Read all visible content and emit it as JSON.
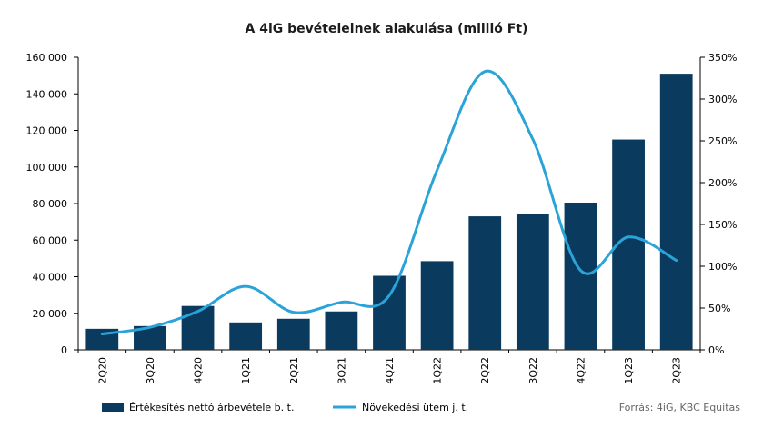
{
  "chart_data": {
    "type": "bar",
    "title": "A 4iG bevételeinek alakulása (millió Ft)",
    "categories": [
      "2Q20",
      "3Q20",
      "4Q20",
      "1Q21",
      "2Q21",
      "3Q21",
      "4Q21",
      "1Q22",
      "2Q22",
      "3Q22",
      "4Q22",
      "1Q23",
      "2Q23"
    ],
    "series": [
      {
        "name": "Értékesítés nettó árbevétele b. t.",
        "type": "bar",
        "axis": "left",
        "color": "#0a3a5e",
        "values": [
          11500,
          13000,
          24000,
          15000,
          17000,
          21000,
          40500,
          48500,
          73000,
          74500,
          80500,
          115000,
          151000
        ]
      },
      {
        "name": "Növekedési ütem j. t.",
        "type": "line",
        "axis": "right",
        "color": "#2aa3d8",
        "values": [
          19,
          27,
          46,
          76,
          45,
          57,
          65,
          215,
          333,
          252,
          95,
          135,
          107
        ]
      }
    ],
    "left_axis": {
      "ylim": [
        0,
        160000
      ],
      "ticks": [
        "0",
        "20 000",
        "40 000",
        "60 000",
        "80 000",
        "100 000",
        "120 000",
        "140 000",
        "160 000"
      ]
    },
    "right_axis": {
      "ylim": [
        0,
        350
      ],
      "ticks": [
        "0%",
        "50%",
        "100%",
        "150%",
        "200%",
        "250%",
        "300%",
        "350%"
      ]
    },
    "grid": false,
    "legend_position": "bottom-left",
    "source": "Forrás: 4iG, KBC Equitas"
  }
}
